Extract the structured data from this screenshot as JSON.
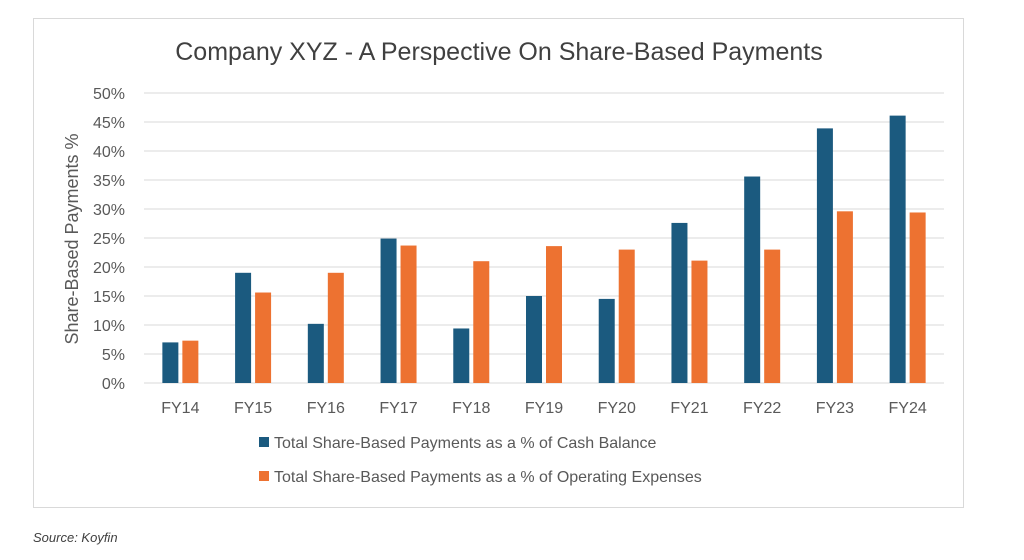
{
  "chart_data": {
    "type": "bar",
    "title": "Company XYZ - A Perspective On Share-Based Payments",
    "xlabel": "",
    "ylabel": "Share-Based Payments %",
    "ylim": [
      0,
      50
    ],
    "y_ticks": [
      "0%",
      "5%",
      "10%",
      "15%",
      "20%",
      "25%",
      "30%",
      "35%",
      "40%",
      "45%",
      "50%"
    ],
    "grid": "horizontal",
    "legend_position": "bottom",
    "categories": [
      "FY14",
      "FY15",
      "FY16",
      "FY17",
      "FY18",
      "FY19",
      "FY20",
      "FY21",
      "FY22",
      "FY23",
      "FY24"
    ],
    "series": [
      {
        "name": "Total Share-Based Payments as a % of Cash Balance",
        "color": "#1b5a7f",
        "values": [
          7.0,
          19.0,
          10.2,
          24.9,
          9.4,
          15.0,
          14.5,
          27.6,
          35.6,
          43.9,
          46.1
        ]
      },
      {
        "name": "Total Share-Based Payments as a % of Operating Expenses",
        "color": "#ed7231",
        "values": [
          7.3,
          15.6,
          19.0,
          23.7,
          21.0,
          23.6,
          23.0,
          21.1,
          23.0,
          29.6,
          29.4
        ]
      }
    ]
  },
  "footer": {
    "source": "Source: Koyfin"
  }
}
